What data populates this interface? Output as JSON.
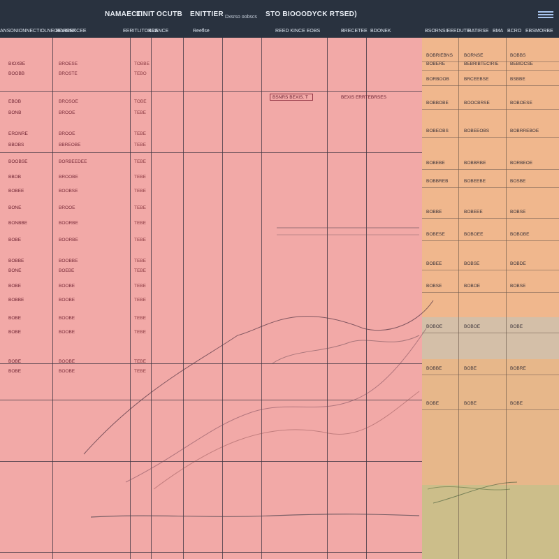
{
  "header": {
    "titles": [
      "NAMAECT",
      "LINIT",
      "OCUTB",
      "ENITTIER",
      "Dxsrso oobscs",
      "STO BIOOODYCK RTSED)"
    ],
    "columns": [
      "ANSONIONNECTIOLNEOEVIONK",
      "BORRETCEE",
      "EERITLITOKCE",
      "BRANCE",
      "Reeflse",
      "REED KINCE EOBS",
      "BRECETEE",
      "BDONEK"
    ],
    "right_columns": [
      "BSORNSIEEEDUTE",
      "BATIRSE",
      "BMA",
      "BCRO",
      "EBSMORBE"
    ],
    "menu_icon": "menu-icon"
  },
  "table": {
    "rows": [
      [
        "BIOXBE",
        "BROESE",
        "TOBBE"
      ],
      [
        "BOOBB",
        "BROSTE",
        "TEBO"
      ],
      [
        "EBOB",
        "BROSOE",
        "TOBE"
      ],
      [
        "BONB",
        "BROOE",
        "TEBE"
      ],
      [
        "ERONRE",
        "BROOE",
        "TEBE"
      ],
      [
        "BBOBS",
        "BBREOBE",
        "TEBE"
      ],
      [
        "BOOBSE",
        "BORBEEDEE",
        "TEBE"
      ],
      [
        "BBOB",
        "BROOBE",
        "TEBE"
      ],
      [
        "BOBEE",
        "BOOBSE",
        "TEBE"
      ],
      [
        "BONE",
        "BROOE",
        "TEBE"
      ],
      [
        "BONBBE",
        "BOORBE",
        "TEBE"
      ],
      [
        "BOBE",
        "BOORBE",
        "TEBE"
      ],
      [
        "BOBBE",
        "BOOBBE",
        "TEBE"
      ],
      [
        "BONE",
        "BOEBE",
        "TEBE"
      ],
      [
        "BOBE",
        "BOOBE",
        "TEBE"
      ],
      [
        "BOBBE",
        "BOOBE",
        "TEBE"
      ],
      [
        "BOBE",
        "BOOBE",
        "TEBE"
      ],
      [
        "BOBE",
        "BOOBE",
        "TEBE"
      ],
      [
        "BOBE",
        "BOOBE",
        "TEBE"
      ],
      [
        "BOBE",
        "BOOBE",
        "TEBE"
      ]
    ]
  },
  "annotation": "BSNRS BEXIS. T",
  "annotation2": "BEXIS ERRTEBRSES",
  "right_panel": {
    "rows": [
      [
        "BOBRIEBNS",
        "BORNSE",
        "BOBBS"
      ],
      [
        "BOBERE",
        "BEBRIBTECIRIE",
        "BEBIDCSE"
      ],
      [
        "BORBOOB",
        "BRCEEBSE",
        "BSBBE"
      ],
      [
        "BOBBOBE",
        "BOOCBRSE",
        "BOBOESE"
      ],
      [
        "BOBEOBS",
        "BOBEEOBS",
        "BOBRREBOE"
      ],
      [
        "BOBEBE",
        "BOBBRBE",
        "BORBEOE"
      ],
      [
        "BOBBREB",
        "BOBEEBE",
        "BOSBE"
      ],
      [
        "BOBBE",
        "BOBEEE",
        "BOBSE"
      ],
      [
        "BOBESE",
        "BOBOEE",
        "BOBOBE"
      ],
      [
        "BOBEE",
        "BOBSE",
        "BOBDE"
      ],
      [
        "BOBSE",
        "BOBOE",
        "BOBSE"
      ],
      [
        "BOBOE",
        "BOBOE",
        "BOBE"
      ],
      [
        "BOBBE",
        "BOBE",
        "BOBRE"
      ],
      [
        "BOBE",
        "BOBE",
        "BOBE"
      ]
    ]
  },
  "colors": {
    "header_bg": "#29323f",
    "grid_bg": "#f2a9a7",
    "right_bg": "#e9b186"
  }
}
